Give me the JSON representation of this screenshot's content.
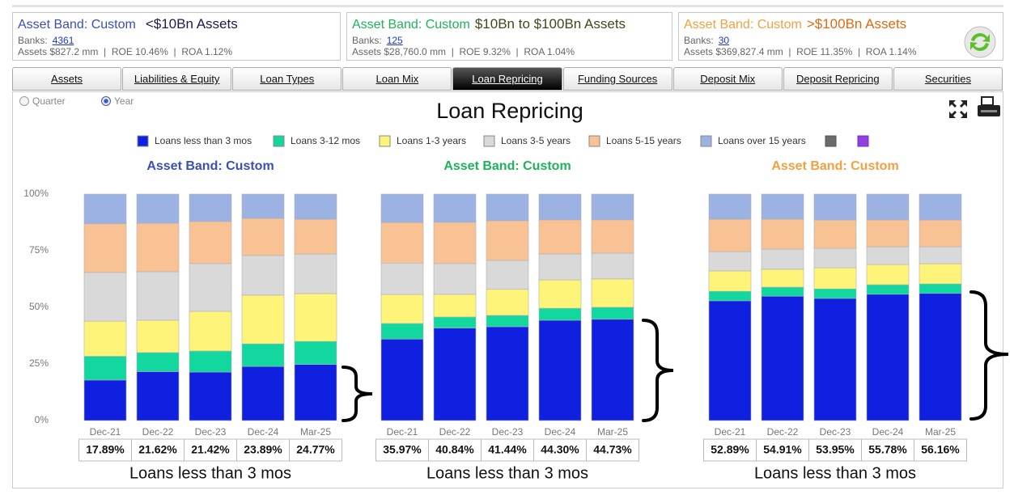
{
  "header_cards": [
    {
      "band_label": "Asset Band: Custom",
      "range": "<$10Bn Assets",
      "banks_label": "Banks:",
      "banks": "4361",
      "stats": "Assets $827.2 mm  |  ROE 10.46%  |  ROA 1.12%"
    },
    {
      "band_label": "Asset Band: Custom",
      "range": "$10Bn to $100Bn Assets",
      "banks_label": "Banks:",
      "banks": "125",
      "stats": "Assets $28,760.0 mm  |  ROE 9.32%  |  ROA 1.04%"
    },
    {
      "band_label": "Asset Band: Custom",
      "range": ">$100Bn Assets",
      "banks_label": "Banks:",
      "banks": "30",
      "stats": "Assets $369,827.4 mm  |  ROE 11.35%  |  ROA 1.14%"
    }
  ],
  "tabs": [
    "Assets",
    "Liabilities & Equity",
    "Loan Types",
    "Loan Mix",
    "Loan Repricing",
    "Funding Sources",
    "Deposit Mix",
    "Deposit Repricing",
    "Securities"
  ],
  "active_tab": "Loan Repricing",
  "period_options": [
    "Quarter",
    "Year"
  ],
  "selected_period": "Year",
  "page_title": "Loan Repricing",
  "chart_data": [
    {
      "type": "stacked_bar",
      "subtitle": "Asset Band: Custom",
      "subtitle_color": "#3a4fb8",
      "footer": "Loans less than 3 mos",
      "categories": [
        "Dec-21",
        "Dec-22",
        "Dec-23",
        "Dec-24",
        "Mar-25"
      ],
      "ylim": [
        0,
        100
      ],
      "yticks": [
        {
          "value": 0,
          "label": "0%"
        },
        {
          "value": 25,
          "label": "25%"
        },
        {
          "value": 50,
          "label": "50%"
        },
        {
          "value": 75,
          "label": "75%"
        },
        {
          "value": 100,
          "label": "100%"
        }
      ],
      "series": [
        {
          "name": "Loans less than 3 mos",
          "color": "#1020e0",
          "values": [
            17.89,
            21.62,
            21.42,
            23.89,
            24.77
          ],
          "value_labels": [
            "17.89%",
            "21.62%",
            "21.42%",
            "23.89%",
            "24.77%"
          ]
        },
        {
          "name": "Loans 3-12 mos",
          "color": "#12d8a0",
          "values": [
            10.5,
            8.4,
            9.3,
            10,
            10.2
          ]
        },
        {
          "name": "Loans 1-3 years",
          "color": "#fff47a",
          "values": [
            15.5,
            14.3,
            17.5,
            21.5,
            21.1
          ]
        },
        {
          "name": "Loans 3-5 years",
          "color": "#d9d9d9",
          "values": [
            21.5,
            21.4,
            21.1,
            17.5,
            17.5
          ]
        },
        {
          "name": "Loans 5-15 years",
          "color": "#f8c294",
          "values": [
            21.5,
            21.4,
            18.6,
            16.4,
            15.3
          ]
        },
        {
          "name": "Loans over 15 years",
          "color": "#9bb2e2",
          "values": [
            13.11,
            12.88,
            12.08,
            10.71,
            11.13
          ]
        }
      ]
    },
    {
      "type": "stacked_bar",
      "subtitle": "Asset Band: Custom",
      "subtitle_color": "#1db35a",
      "footer": "Loans less than 3 mos",
      "categories": [
        "Dec-21",
        "Dec-22",
        "Dec-23",
        "Dec-24",
        "Mar-25"
      ],
      "ylim": [
        0,
        100
      ],
      "series": [
        {
          "name": "Loans less than 3 mos",
          "color": "#1020e0",
          "values": [
            35.97,
            40.84,
            41.44,
            44.3,
            44.73
          ],
          "value_labels": [
            "35.97%",
            "40.84%",
            "41.44%",
            "44.30%",
            "44.73%"
          ]
        },
        {
          "name": "Loans 3-12 mos",
          "color": "#12d8a0",
          "values": [
            6.9,
            4.9,
            5,
            5.3,
            5.3
          ]
        },
        {
          "name": "Loans 1-3 years",
          "color": "#fff47a",
          "values": [
            12.8,
            10,
            11.5,
            12.5,
            12.5
          ]
        },
        {
          "name": "Loans 3-5 years",
          "color": "#d9d9d9",
          "values": [
            13.9,
            13.6,
            12.8,
            11.5,
            11.4
          ]
        },
        {
          "name": "Loans 5-15 years",
          "color": "#f8c294",
          "values": [
            17.9,
            18.2,
            17.5,
            15,
            14.7
          ]
        },
        {
          "name": "Loans over 15 years",
          "color": "#9bb2e2",
          "values": [
            12.53,
            12.46,
            11.76,
            11.4,
            11.37
          ]
        }
      ]
    },
    {
      "type": "stacked_bar",
      "subtitle": "Asset Band: Custom",
      "subtitle_color": "#f4a040",
      "footer": "Loans less than 3 mos",
      "categories": [
        "Dec-21",
        "Dec-22",
        "Dec-23",
        "Dec-24",
        "Mar-25"
      ],
      "ylim": [
        0,
        100
      ],
      "series": [
        {
          "name": "Loans less than 3 mos",
          "color": "#1020e0",
          "values": [
            52.89,
            54.91,
            53.95,
            55.78,
            56.16
          ],
          "value_labels": [
            "52.89%",
            "54.91%",
            "53.95%",
            "55.78%",
            "56.16%"
          ]
        },
        {
          "name": "Loans 3-12 mos",
          "color": "#12d8a0",
          "values": [
            4.2,
            4,
            4.2,
            4.2,
            4.2
          ]
        },
        {
          "name": "Loans 1-3 years",
          "color": "#fff47a",
          "values": [
            9,
            7.9,
            9.3,
            8.9,
            8.9
          ]
        },
        {
          "name": "Loans 3-5 years",
          "color": "#d9d9d9",
          "values": [
            8.5,
            8.9,
            8.6,
            7.9,
            7.5
          ]
        },
        {
          "name": "Loans 5-15 years",
          "color": "#f8c294",
          "values": [
            14.3,
            13.2,
            12.5,
            11.8,
            11.8
          ]
        },
        {
          "name": "Loans over 15 years",
          "color": "#9bb2e2",
          "values": [
            11.11,
            11.09,
            11.45,
            11.42,
            11.44
          ]
        }
      ]
    }
  ]
}
